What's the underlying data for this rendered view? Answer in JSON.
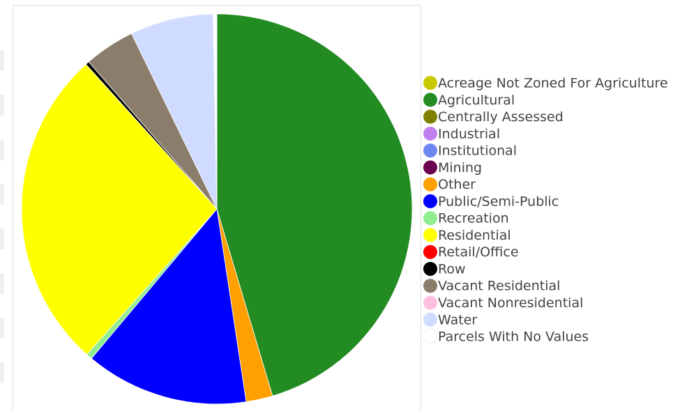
{
  "chart_data": {
    "type": "pie",
    "categories": [
      "Acreage Not Zoned For Agriculture",
      "Agricultural",
      "Centrally Assessed",
      "Industrial",
      "Institutional",
      "Mining",
      "Other",
      "Public/Semi-Public",
      "Recreation",
      "Residential",
      "Retail/Office",
      "Row",
      "Vacant Residential",
      "Vacant Nonresidential",
      "Water",
      "Parcels With No Values"
    ],
    "values": [
      0,
      45.4,
      0,
      0,
      0,
      0,
      2.2,
      13.5,
      0.5,
      26.7,
      0,
      0.3,
      4.2,
      0,
      6.9,
      0.3
    ],
    "colors": [
      "#c8c800",
      "#228b22",
      "#808000",
      "#c080f0",
      "#6f87f0",
      "#6b0050",
      "#ffa000",
      "#0000ff",
      "#90ee90",
      "#ffff00",
      "#ff0000",
      "#000000",
      "#8b7d6b",
      "#ffc0e0",
      "#d0dcff",
      "#ffffff"
    ]
  }
}
